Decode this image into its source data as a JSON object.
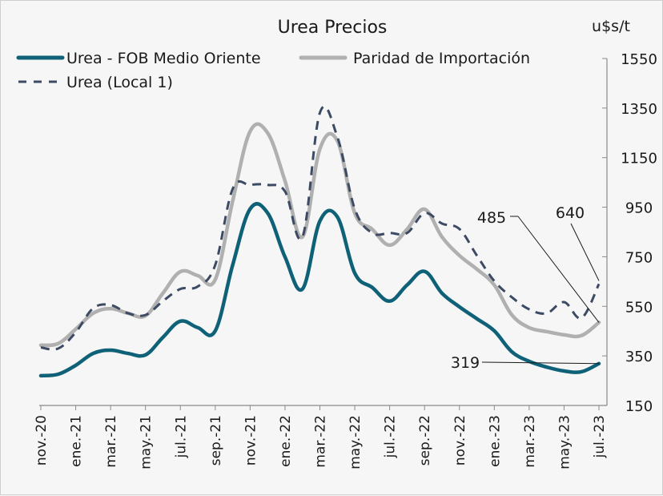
{
  "chart_data": {
    "type": "line",
    "title": "Urea Precios",
    "ylabel": "u$s/t",
    "xlabel": "",
    "ylim": [
      150,
      1550
    ],
    "yticks": [
      150,
      350,
      550,
      750,
      950,
      1150,
      1350,
      1550
    ],
    "ytick_labels": [
      "150",
      "350",
      "550",
      "750",
      "950",
      "1150",
      "1350",
      "1550"
    ],
    "y_axis_side": "right",
    "grid": false,
    "legend_position": "top-left",
    "x": [
      "nov.-20",
      "dic.-20",
      "ene.-21",
      "feb.-21",
      "mar.-21",
      "abr.-21",
      "may.-21",
      "jun.-21",
      "jul.-21",
      "ago.-21",
      "sep.-21",
      "oct.-21",
      "nov.-21",
      "dic.-21",
      "ene.-22",
      "feb.-22",
      "mar.-22",
      "abr.-22",
      "may.-22",
      "jun.-22",
      "jul.-22",
      "ago.-22",
      "sep.-22",
      "oct.-22",
      "nov.-22",
      "dic.-22",
      "ene.-23",
      "feb.-23",
      "mar.-23",
      "abr.-23",
      "may.-23",
      "jun.-23",
      "jul.-23"
    ],
    "xtick_labels": [
      "nov.-20",
      "ene.-21",
      "mar.-21",
      "may.-21",
      "jul.-21",
      "sep.-21",
      "nov.-21",
      "ene.-22",
      "mar.-22",
      "may.-22",
      "jul.-22",
      "sep.-22",
      "nov.-22",
      "ene.-23",
      "mar.-23",
      "may.-23",
      "jul.-23"
    ],
    "series": [
      {
        "name": "Urea - FOB Medio Oriente",
        "color": "#0f6178",
        "style": "solid",
        "values": [
          270,
          276,
          312,
          360,
          373,
          360,
          354,
          425,
          490,
          464,
          451,
          717,
          943,
          927,
          749,
          620,
          894,
          911,
          684,
          626,
          571,
          636,
          691,
          603,
          548,
          500,
          451,
          367,
          328,
          305,
          289,
          286,
          319
        ]
      },
      {
        "name": "Paridad de Importación",
        "color": "#b0b0b0",
        "style": "solid",
        "values": [
          393,
          400,
          458,
          522,
          541,
          522,
          512,
          603,
          690,
          674,
          658,
          975,
          1256,
          1250,
          1056,
          830,
          1185,
          1218,
          926,
          861,
          797,
          861,
          942,
          830,
          755,
          700,
          636,
          516,
          464,
          448,
          435,
          432,
          485
        ]
      },
      {
        "name": "Urea (Local 1)",
        "color": "#3d4a63",
        "style": "dashed",
        "values": [
          384,
          380,
          445,
          542,
          555,
          522,
          515,
          571,
          620,
          630,
          717,
          1024,
          1040,
          1040,
          1014,
          830,
          1331,
          1234,
          943,
          846,
          846,
          846,
          926,
          884,
          862,
          755,
          652,
          587,
          538,
          522,
          567,
          503,
          640
        ]
      }
    ],
    "annotations": [
      {
        "text": "319",
        "series": "Urea - FOB Medio Oriente",
        "x": "jul.-23",
        "value": 319
      },
      {
        "text": "485",
        "series": "Paridad de Importación",
        "x": "jul.-23",
        "value": 485
      },
      {
        "text": "640",
        "series": "Urea (Local 1)",
        "x": "jul.-23",
        "value": 640
      }
    ]
  }
}
